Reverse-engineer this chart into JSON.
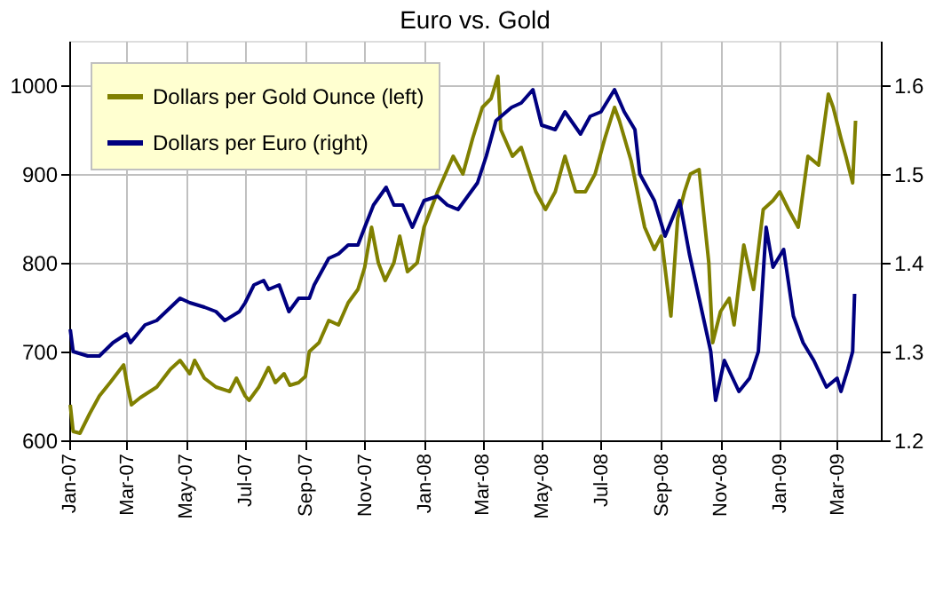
{
  "chart_data": {
    "type": "line",
    "title": "Euro vs. Gold",
    "xlim": [
      "2007-01-01",
      "2009-04-15"
    ],
    "xticks": [
      {
        "value": "2007-01-01",
        "label": "Jan-07"
      },
      {
        "value": "2007-03-01",
        "label": "Mar-07"
      },
      {
        "value": "2007-05-01",
        "label": "May-07"
      },
      {
        "value": "2007-07-01",
        "label": "Jul-07"
      },
      {
        "value": "2007-09-01",
        "label": "Sep-07"
      },
      {
        "value": "2007-11-01",
        "label": "Nov-07"
      },
      {
        "value": "2008-01-01",
        "label": "Jan-08"
      },
      {
        "value": "2008-03-01",
        "label": "Mar-08"
      },
      {
        "value": "2008-05-01",
        "label": "May-08"
      },
      {
        "value": "2008-07-01",
        "label": "Jul-08"
      },
      {
        "value": "2008-09-01",
        "label": "Sep-08"
      },
      {
        "value": "2008-11-01",
        "label": "Nov-08"
      },
      {
        "value": "2009-01-01",
        "label": "Jan-09"
      },
      {
        "value": "2009-03-01",
        "label": "Mar-09"
      }
    ],
    "ylim": [
      600,
      1050
    ],
    "yticks": [
      600,
      700,
      800,
      900,
      1000
    ],
    "y2lim": [
      1.2,
      1.65
    ],
    "y2ticks": [
      1.2,
      1.3,
      1.4,
      1.5,
      1.6
    ],
    "grid": true,
    "legend": "top left",
    "series": [
      {
        "name": "Dollars per Gold Ounce (left)",
        "color": "#808000",
        "axis": "y",
        "x": [
          "2007-01-02",
          "2007-01-05",
          "2007-01-12",
          "2007-01-22",
          "2007-02-01",
          "2007-02-12",
          "2007-02-26",
          "2007-03-02",
          "2007-03-06",
          "2007-03-15",
          "2007-04-01",
          "2007-04-15",
          "2007-04-25",
          "2007-05-05",
          "2007-05-10",
          "2007-05-20",
          "2007-06-01",
          "2007-06-15",
          "2007-06-22",
          "2007-07-01",
          "2007-07-05",
          "2007-07-15",
          "2007-07-25",
          "2007-08-01",
          "2007-08-10",
          "2007-08-16",
          "2007-08-25",
          "2007-09-01",
          "2007-09-05",
          "2007-09-15",
          "2007-09-25",
          "2007-10-05",
          "2007-10-15",
          "2007-10-25",
          "2007-11-01",
          "2007-11-08",
          "2007-11-15",
          "2007-11-22",
          "2007-12-01",
          "2007-12-07",
          "2007-12-15",
          "2007-12-25",
          "2008-01-01",
          "2008-01-15",
          "2008-01-31",
          "2008-02-10",
          "2008-02-20",
          "2008-03-01",
          "2008-03-10",
          "2008-03-17",
          "2008-03-20",
          "2008-04-01",
          "2008-04-10",
          "2008-04-25",
          "2008-05-05",
          "2008-05-15",
          "2008-05-25",
          "2008-06-05",
          "2008-06-15",
          "2008-06-25",
          "2008-07-05",
          "2008-07-15",
          "2008-07-20",
          "2008-08-01",
          "2008-08-15",
          "2008-08-25",
          "2008-09-01",
          "2008-09-11",
          "2008-09-18",
          "2008-09-25",
          "2008-10-01",
          "2008-10-10",
          "2008-10-20",
          "2008-10-24",
          "2008-11-01",
          "2008-11-10",
          "2008-11-15",
          "2008-11-25",
          "2008-12-05",
          "2008-12-15",
          "2008-12-25",
          "2009-01-01",
          "2009-01-10",
          "2009-01-20",
          "2009-01-30",
          "2009-02-10",
          "2009-02-20",
          "2009-02-25",
          "2009-03-05",
          "2009-03-10",
          "2009-03-17",
          "2009-03-20"
        ],
        "values": [
          640,
          610,
          608,
          630,
          650,
          665,
          685,
          660,
          640,
          648,
          660,
          680,
          690,
          675,
          690,
          670,
          660,
          655,
          670,
          650,
          645,
          660,
          682,
          665,
          675,
          662,
          665,
          672,
          700,
          710,
          735,
          730,
          755,
          770,
          795,
          840,
          800,
          780,
          800,
          830,
          790,
          800,
          840,
          880,
          920,
          900,
          940,
          975,
          985,
          1010,
          950,
          920,
          930,
          880,
          860,
          880,
          920,
          880,
          880,
          900,
          940,
          975,
          960,
          915,
          840,
          815,
          830,
          740,
          850,
          880,
          900,
          905,
          800,
          710,
          745,
          760,
          730,
          820,
          770,
          860,
          870,
          880,
          860,
          840,
          920,
          910,
          990,
          975,
          940,
          920,
          890,
          960
        ]
      },
      {
        "name": "Dollars per Euro (right)",
        "color": "#000080",
        "axis": "y2",
        "x": [
          "2007-01-02",
          "2007-01-05",
          "2007-01-20",
          "2007-02-01",
          "2007-02-15",
          "2007-03-01",
          "2007-03-05",
          "2007-03-20",
          "2007-04-01",
          "2007-04-25",
          "2007-05-05",
          "2007-05-20",
          "2007-06-01",
          "2007-06-10",
          "2007-06-25",
          "2007-07-01",
          "2007-07-10",
          "2007-07-20",
          "2007-07-25",
          "2007-08-05",
          "2007-08-15",
          "2007-08-25",
          "2007-09-05",
          "2007-09-10",
          "2007-09-25",
          "2007-10-05",
          "2007-10-15",
          "2007-10-25",
          "2007-11-01",
          "2007-11-10",
          "2007-11-23",
          "2007-12-01",
          "2007-12-10",
          "2007-12-20",
          "2008-01-01",
          "2008-01-15",
          "2008-01-25",
          "2008-02-05",
          "2008-02-15",
          "2008-02-25",
          "2008-03-05",
          "2008-03-15",
          "2008-03-31",
          "2008-04-10",
          "2008-04-22",
          "2008-05-01",
          "2008-05-15",
          "2008-05-25",
          "2008-06-10",
          "2008-06-20",
          "2008-07-01",
          "2008-07-15",
          "2008-07-25",
          "2008-08-05",
          "2008-08-10",
          "2008-08-25",
          "2008-09-05",
          "2008-09-20",
          "2008-09-30",
          "2008-10-10",
          "2008-10-22",
          "2008-10-27",
          "2008-11-05",
          "2008-11-20",
          "2008-12-01",
          "2008-12-10",
          "2008-12-18",
          "2008-12-25",
          "2009-01-05",
          "2009-01-15",
          "2009-01-25",
          "2009-02-05",
          "2009-02-18",
          "2009-03-01",
          "2009-03-05",
          "2009-03-12",
          "2009-03-17",
          "2009-03-19"
        ],
        "values": [
          1.325,
          1.3,
          1.295,
          1.295,
          1.31,
          1.32,
          1.31,
          1.33,
          1.335,
          1.36,
          1.355,
          1.35,
          1.345,
          1.335,
          1.345,
          1.355,
          1.375,
          1.38,
          1.37,
          1.375,
          1.345,
          1.36,
          1.36,
          1.375,
          1.405,
          1.41,
          1.42,
          1.42,
          1.44,
          1.465,
          1.485,
          1.465,
          1.465,
          1.44,
          1.47,
          1.475,
          1.465,
          1.46,
          1.475,
          1.49,
          1.52,
          1.56,
          1.575,
          1.58,
          1.595,
          1.555,
          1.55,
          1.57,
          1.545,
          1.565,
          1.57,
          1.595,
          1.57,
          1.55,
          1.5,
          1.47,
          1.43,
          1.47,
          1.41,
          1.36,
          1.3,
          1.245,
          1.29,
          1.255,
          1.27,
          1.3,
          1.44,
          1.395,
          1.415,
          1.34,
          1.31,
          1.29,
          1.26,
          1.27,
          1.255,
          1.28,
          1.3,
          1.365
        ]
      }
    ]
  }
}
